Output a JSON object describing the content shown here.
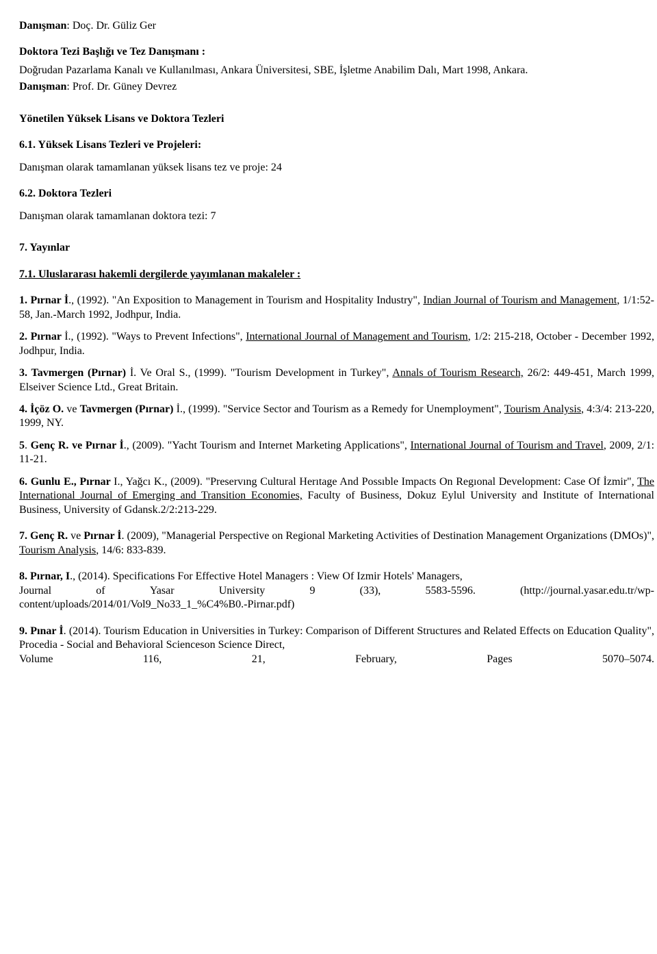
{
  "advisor_line": {
    "label": "Danışman",
    "colon": ": ",
    "name": "Doç. Dr. Güliz Ger"
  },
  "phd_block": {
    "heading": "Doktora Tezi Başlığı ve  Tez Danışmanı :",
    "body": "Doğrudan Pazarlama Kanalı ve Kullanılması, Ankara Üniversitesi, SBE, İşletme Anabilim Dalı, Mart 1998, Ankara.",
    "advisor_label": "Danışman",
    "advisor_colon": ": ",
    "advisor_name": "Prof. Dr. Güney Devrez"
  },
  "supervised_heading": "Yönetilen Yüksek Lisans ve Doktora Tezleri",
  "sub61": {
    "heading": "6.1. Yüksek Lisans Tezleri ve Projeleri:",
    "body": "Danışman olarak tamamlanan yüksek lisans tez ve proje: 24"
  },
  "sub62": {
    "heading": "6.2. Doktora Tezleri",
    "body": "Danışman olarak tamamlanan doktora tezi:  7"
  },
  "pubs_heading": "7. Yayınlar",
  "pubs_subheading": "7.1. Uluslararası hakemli dergilerde yayımlanan makaleler :",
  "items": {
    "p1": {
      "num": "1. ",
      "author": "Pırnar İ",
      "after_author": "., (1992). \"An Exposition to Management in Tourism and Hospitality Industry\", ",
      "ul": "Indian Journal of Tourism and  Management",
      "tail": ", 1/1:52-58, Jan.-March 1992, Jodhpur, India."
    },
    "p2": {
      "num": "2. ",
      "author": "Pırnar ",
      "after_author": "İ., (1992). \"Ways to Prevent Infections\", ",
      "ul": "International Journal of Management and Tourism",
      "tail": ", 1/2: 215-218, October - December 1992, Jodhpur, India."
    },
    "p3": {
      "num": "3. ",
      "author": "Tavmergen (Pırnar) ",
      "after_author": "İ. Ve  Oral S., (1999). \"Tourism Development in Turkey\", ",
      "ul": "Annals of Tourism Research,",
      "tail": " 26/2: 449-451, March 1999, Elseiver Science Ltd., Great Britain."
    },
    "p4": {
      "num": "4. ",
      "author_pre": "İçöz O.",
      "mid": "  ve  ",
      "author2": "Tavmergen (Pırnar) ",
      "after_author": "İ., (1999). \"Service Sector and Tourism as a Remedy for Unemployment\", ",
      "ul": "Tourism Analysis",
      "tail": ",  4:3/4: 213-220, 1999, NY."
    },
    "p5": {
      "num": "5",
      "dot": ". ",
      "author": "Genç R. ve Pırnar İ",
      "after_author": "., (2009).  \"Yacht Tourism and Internet Marketing Applications\", ",
      "ul": "International Journal of Tourism and Travel",
      "tail": ", 2009, 2/1: 11-21."
    },
    "p6": {
      "num": "6.  ",
      "author": "Gunlu  E.,  Pırnar  ",
      "after_author": "I.,  Yağcı  K.,  (2009).  \"Preservıng  Cultural  Herıtage  And  Possıble  Impacts  On Regıonal  Development:  Case  Of  İzmir\",  ",
      "ul": "The  International  Journal  of  Emerging  and  Transition Economies,",
      "tail": "  Faculty  of  Business,  Dokuz  Eylul  University  and  Institute  of  International  Business, University of Gdansk.2/2:213-229."
    },
    "p7": {
      "num": "7. ",
      "author": "Genç R. ",
      "mid": "ve ",
      "author2": "Pırnar İ",
      "after_author": ". (2009), \"Managerial Perspective on Regional Marketing Activities of Destination Management Organizations (DMOs)\", ",
      "ul": "Tourism Analysis",
      "tail": ", 14/6: 833-839."
    },
    "p8": {
      "num": "8. ",
      "author": "Pırnar, I",
      "after_author": "., (2014). Specifications For Effective Hotel Managers : View Of Izmir Hotels' Managers,",
      "row": {
        "c1": "Journal",
        "c2": "of",
        "c3": "Yasar",
        "c4": "University",
        "c5": "9",
        "c6": "(33),",
        "c7": "5583-5596.",
        "c8": "(http://journal.yasar.edu.tr/wp-"
      },
      "tail_line": "content/uploads/2014/01/Vol9_No33_1_%C4%B0.-Pirnar.pdf)"
    },
    "p9": {
      "num": "9. ",
      "author": "Pınar İ",
      "after_author": ".  (2014). Tourism Education in Universities in Turkey: Comparison of Different Structures and Related Effects on Education Quality\", Procedia - Social and Behavioral Scienceson Science Direct,",
      "row": {
        "c1": "Volume",
        "c2": "116,",
        "c3": "21,",
        "c4": "February,",
        "c5": "Pages",
        "c6": "5070–5074."
      }
    }
  }
}
